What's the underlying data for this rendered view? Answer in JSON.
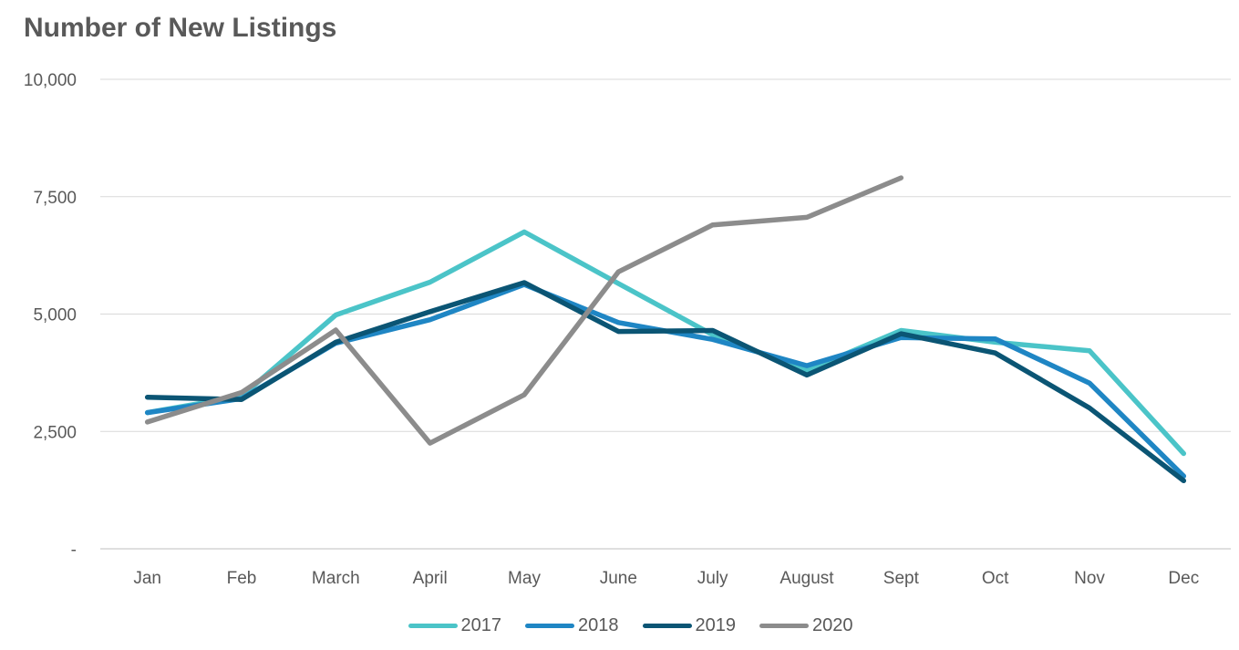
{
  "chart_data": {
    "type": "line",
    "title": "Number of New Listings",
    "xlabel": "",
    "ylabel": "",
    "categories": [
      "Jan",
      "Feb",
      "March",
      "April",
      "May",
      "June",
      "July",
      "August",
      "Sept",
      "Oct",
      "Nov",
      "Dec"
    ],
    "ylim": [
      0,
      10000
    ],
    "yticks": [
      0,
      2500,
      5000,
      7500,
      10000
    ],
    "ytick_labels": [
      "-",
      "2,500",
      "5,000",
      "7,500",
      "10,000"
    ],
    "grid": true,
    "legend_position": "bottom",
    "series": [
      {
        "name": "2017",
        "color": "#4BC4C8",
        "values": [
          2900,
          3250,
          4980,
          5680,
          6750,
          5650,
          4560,
          3800,
          4650,
          4400,
          4220,
          2030
        ]
      },
      {
        "name": "2018",
        "color": "#1F86C4",
        "values": [
          2900,
          3200,
          4380,
          4880,
          5630,
          4820,
          4460,
          3900,
          4500,
          4470,
          3530,
          1550
        ]
      },
      {
        "name": "2019",
        "color": "#0B5574",
        "values": [
          3230,
          3180,
          4400,
          5050,
          5670,
          4630,
          4650,
          3700,
          4580,
          4170,
          3000,
          1450
        ]
      },
      {
        "name": "2020",
        "color": "#8C8C8C",
        "values": [
          2700,
          3330,
          4660,
          2250,
          3280,
          5900,
          6900,
          7060,
          7900,
          null,
          null,
          null
        ]
      }
    ]
  }
}
